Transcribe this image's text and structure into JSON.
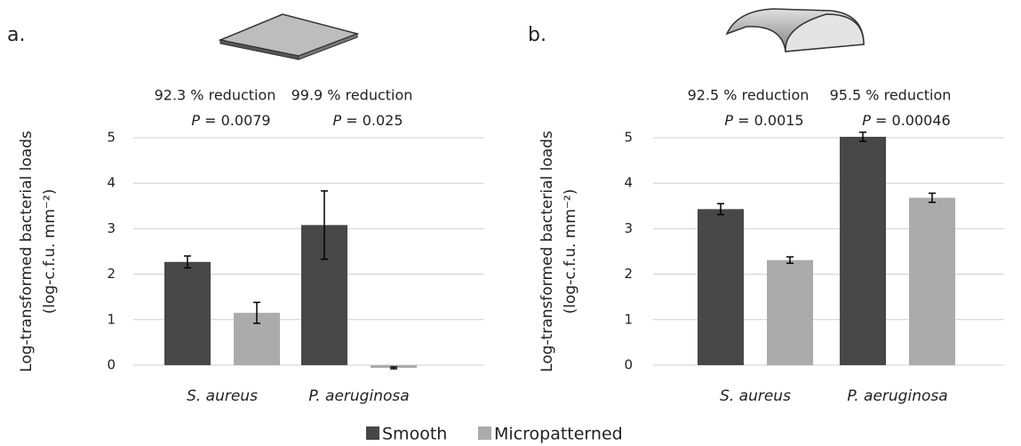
{
  "legend": [
    {
      "name": "Smooth",
      "color": "#474747"
    },
    {
      "name": "Micropatterned",
      "color": "#ababab"
    }
  ],
  "chart_data": [
    {
      "type": "bar",
      "panel": "a.",
      "y_label": [
        "Log-transformed bacterial loads",
        "(log-c.f.u. mm⁻²)"
      ],
      "categories": [
        "S. aureus",
        "P. aeruginosa"
      ],
      "series": [
        {
          "values": [
            2.27,
            3.08
          ],
          "errors": [
            0.13,
            0.75
          ]
        },
        {
          "values": [
            1.15,
            -0.06
          ],
          "errors": [
            0.23,
            0.02
          ]
        }
      ],
      "annotations": [
        {
          "text": "92.3 % reduction",
          "p_symbol": "P",
          "p_value": "= 0.0079"
        },
        {
          "text": "99.9 % reduction",
          "p_symbol": "P",
          "p_value": "= 0.025"
        }
      ],
      "ylim": [
        0,
        5
      ],
      "yticks": [
        0,
        1,
        2,
        3,
        4,
        5
      ],
      "grid": true
    },
    {
      "type": "bar",
      "panel": "b.",
      "y_label": [
        "Log-transformed bacterial loads",
        "(log-c.f.u. mm⁻²)"
      ],
      "categories": [
        "S. aureus",
        "P. aeruginosa"
      ],
      "series": [
        {
          "values": [
            3.43,
            5.02
          ],
          "errors": [
            0.12,
            0.1
          ]
        },
        {
          "values": [
            2.31,
            3.68
          ],
          "errors": [
            0.07,
            0.1
          ]
        }
      ],
      "annotations": [
        {
          "text": "92.5 % reduction",
          "p_symbol": "P",
          "p_value": "= 0.0015"
        },
        {
          "text": "95.5 % reduction",
          "p_symbol": "P",
          "p_value": "= 0.00046"
        }
      ],
      "ylim": [
        0,
        5
      ],
      "yticks": [
        0,
        1,
        2,
        3,
        4,
        5
      ],
      "grid": true
    }
  ]
}
